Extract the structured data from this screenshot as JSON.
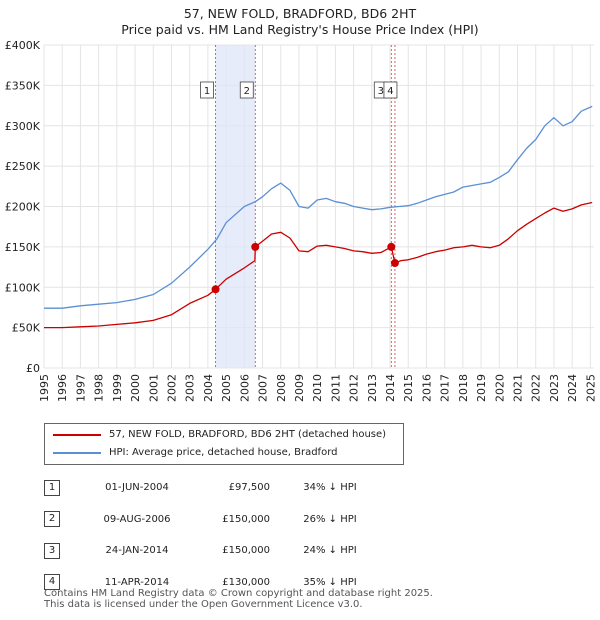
{
  "title": {
    "line1": "57, NEW FOLD, BRADFORD, BD6 2HT",
    "line2": "Price paid vs. HM Land Registry's House Price Index (HPI)"
  },
  "chart_data": {
    "type": "line",
    "ylim": [
      0,
      400000
    ],
    "xlim": [
      1995.0,
      2025.2
    ],
    "y_ticks": [
      {
        "value": 0,
        "label": "£0"
      },
      {
        "value": 50000,
        "label": "£50K"
      },
      {
        "value": 100000,
        "label": "£100K"
      },
      {
        "value": 150000,
        "label": "£150K"
      },
      {
        "value": 200000,
        "label": "£200K"
      },
      {
        "value": 250000,
        "label": "£250K"
      },
      {
        "value": 300000,
        "label": "£300K"
      },
      {
        "value": 350000,
        "label": "£350K"
      },
      {
        "value": 400000,
        "label": "£400K"
      }
    ],
    "x_ticks": [
      "1995",
      "1996",
      "1997",
      "1998",
      "1999",
      "2000",
      "2001",
      "2002",
      "2003",
      "2004",
      "2005",
      "2006",
      "2007",
      "2008",
      "2009",
      "2010",
      "2011",
      "2012",
      "2013",
      "2014",
      "2015",
      "2016",
      "2017",
      "2018",
      "2019",
      "2020",
      "2021",
      "2022",
      "2023",
      "2024",
      "2025"
    ],
    "shaded_period": [
      2004.42,
      2006.6
    ],
    "series": [
      {
        "name": "HPI: Average price, detached house, Bradford",
        "color": "#5b8fd4",
        "points": [
          [
            1995,
            74000
          ],
          [
            1996,
            74000
          ],
          [
            1997,
            77000
          ],
          [
            1998,
            79000
          ],
          [
            1999,
            81000
          ],
          [
            2000,
            85000
          ],
          [
            2001,
            91000
          ],
          [
            2002,
            105000
          ],
          [
            2003,
            125000
          ],
          [
            2004,
            147000
          ],
          [
            2004.5,
            160000
          ],
          [
            2005,
            180000
          ],
          [
            2006,
            200000
          ],
          [
            2006.6,
            206000
          ],
          [
            2007,
            212000
          ],
          [
            2007.5,
            222000
          ],
          [
            2008,
            229000
          ],
          [
            2008.5,
            220000
          ],
          [
            2009,
            200000
          ],
          [
            2009.5,
            198000
          ],
          [
            2010,
            208000
          ],
          [
            2010.5,
            210000
          ],
          [
            2011,
            206000
          ],
          [
            2011.5,
            204000
          ],
          [
            2012,
            200000
          ],
          [
            2012.5,
            198000
          ],
          [
            2013,
            196000
          ],
          [
            2013.5,
            197000
          ],
          [
            2014,
            199000
          ],
          [
            2014.5,
            200000
          ],
          [
            2015,
            201000
          ],
          [
            2015.5,
            204000
          ],
          [
            2016,
            208000
          ],
          [
            2016.5,
            212000
          ],
          [
            2017,
            215000
          ],
          [
            2017.5,
            218000
          ],
          [
            2018,
            224000
          ],
          [
            2018.5,
            226000
          ],
          [
            2019,
            228000
          ],
          [
            2019.5,
            230000
          ],
          [
            2020,
            236000
          ],
          [
            2020.5,
            243000
          ],
          [
            2021,
            258000
          ],
          [
            2021.5,
            272000
          ],
          [
            2022,
            283000
          ],
          [
            2022.5,
            300000
          ],
          [
            2023,
            310000
          ],
          [
            2023.5,
            300000
          ],
          [
            2024,
            305000
          ],
          [
            2024.5,
            318000
          ],
          [
            2025.1,
            324000
          ]
        ]
      },
      {
        "name": "57, NEW FOLD, BRADFORD, BD6 2HT (detached house)",
        "color": "#cc0000",
        "points": [
          [
            1995,
            50000
          ],
          [
            1996,
            50000
          ],
          [
            1997,
            51000
          ],
          [
            1998,
            52000
          ],
          [
            1999,
            54000
          ],
          [
            2000,
            56000
          ],
          [
            2001,
            59000
          ],
          [
            2002,
            66000
          ],
          [
            2003,
            80000
          ],
          [
            2004,
            90000
          ],
          [
            2004.42,
            97500
          ],
          [
            2005,
            110000
          ],
          [
            2006,
            124000
          ],
          [
            2006.58,
            133000
          ],
          [
            2006.6,
            150000
          ],
          [
            2007,
            157000
          ],
          [
            2007.5,
            166000
          ],
          [
            2008,
            168000
          ],
          [
            2008.5,
            161000
          ],
          [
            2009,
            145000
          ],
          [
            2009.5,
            144000
          ],
          [
            2010,
            151000
          ],
          [
            2010.5,
            152000
          ],
          [
            2011,
            150000
          ],
          [
            2011.5,
            148000
          ],
          [
            2012,
            145000
          ],
          [
            2012.5,
            144000
          ],
          [
            2013,
            142000
          ],
          [
            2013.5,
            143000
          ],
          [
            2014.07,
            150000
          ],
          [
            2014.27,
            130000
          ],
          [
            2014.6,
            133000
          ],
          [
            2015,
            134000
          ],
          [
            2015.5,
            137000
          ],
          [
            2016,
            141000
          ],
          [
            2016.5,
            144000
          ],
          [
            2017,
            146000
          ],
          [
            2017.5,
            149000
          ],
          [
            2018,
            150000
          ],
          [
            2018.5,
            152000
          ],
          [
            2019,
            150000
          ],
          [
            2019.5,
            149000
          ],
          [
            2020,
            152000
          ],
          [
            2020.5,
            160000
          ],
          [
            2021,
            170000
          ],
          [
            2021.5,
            178000
          ],
          [
            2022,
            185000
          ],
          [
            2022.5,
            192000
          ],
          [
            2023,
            198000
          ],
          [
            2023.5,
            194000
          ],
          [
            2024,
            197000
          ],
          [
            2024.5,
            202000
          ],
          [
            2025.1,
            205000
          ]
        ]
      }
    ],
    "sales": [
      {
        "id": "1",
        "x": 2004.42,
        "price": 97500
      },
      {
        "id": "2",
        "x": 2006.6,
        "price": 150000
      },
      {
        "id": "3",
        "x": 2014.07,
        "price": 150000
      },
      {
        "id": "4",
        "x": 2014.27,
        "price": 130000
      }
    ]
  },
  "legend": {
    "property": "57, NEW FOLD, BRADFORD, BD6 2HT (detached house)",
    "hpi": "HPI: Average price, detached house, Bradford",
    "property_color": "#cc0000",
    "hpi_color": "#5b8fd4"
  },
  "transactions": [
    {
      "num": "1",
      "date": "01-JUN-2004",
      "price": "£97,500",
      "hpi": "34% ↓ HPI"
    },
    {
      "num": "2",
      "date": "09-AUG-2006",
      "price": "£150,000",
      "hpi": "26% ↓ HPI"
    },
    {
      "num": "3",
      "date": "24-JAN-2014",
      "price": "£150,000",
      "hpi": "24% ↓ HPI"
    },
    {
      "num": "4",
      "date": "11-APR-2014",
      "price": "£130,000",
      "hpi": "35% ↓ HPI"
    }
  ],
  "footer": {
    "line1": "Contains HM Land Registry data © Crown copyright and database right 2025.",
    "line2": "This data is licensed under the Open Government Licence v3.0."
  }
}
